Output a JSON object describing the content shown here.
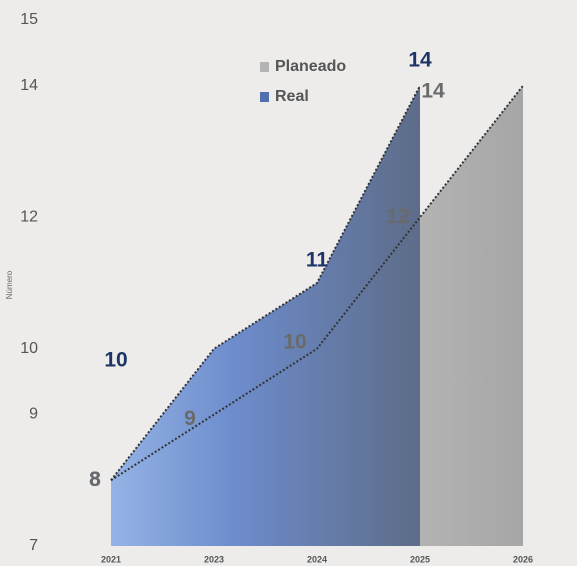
{
  "chart_data": {
    "type": "area",
    "y_label": "Número",
    "categories": [
      "2021",
      "2023",
      "2024",
      "2025",
      "2026"
    ],
    "series": [
      {
        "name": "Planeado",
        "color": "#b4b4b4",
        "values": [
          8,
          9,
          10,
          12,
          14
        ]
      },
      {
        "name": "Real",
        "color": "#4f6fae",
        "values": [
          8,
          10,
          11,
          14,
          null
        ]
      }
    ],
    "ylim": [
      7,
      15
    ],
    "yticks": [
      7,
      9,
      10,
      12,
      14,
      15
    ],
    "legend": "top"
  }
}
